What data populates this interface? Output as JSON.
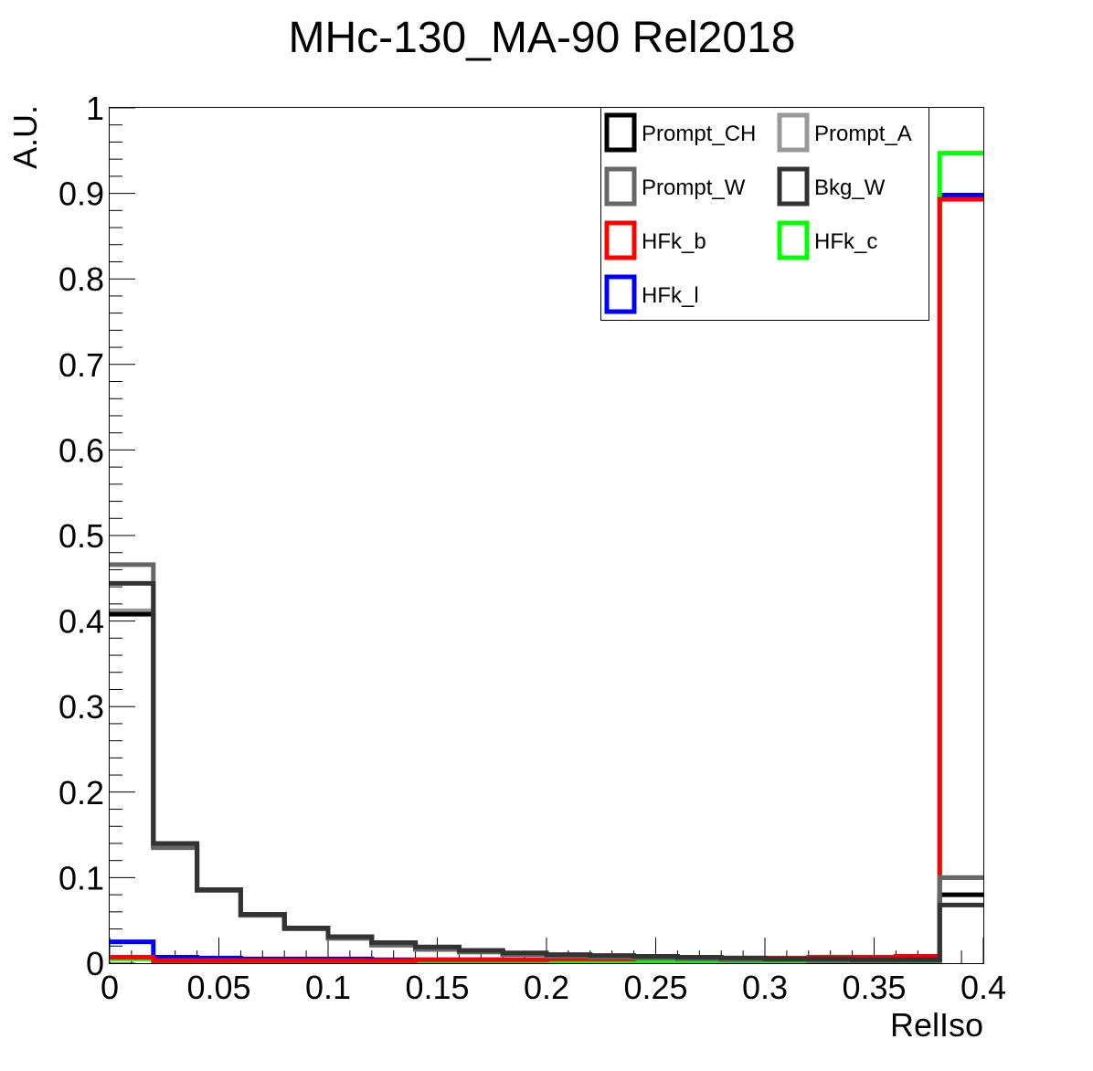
{
  "chart_data": {
    "type": "line",
    "title": "MHc-130_MA-90  Rel2018",
    "xlabel": "RelIso",
    "ylabel": "A.U.",
    "xlim": [
      0,
      0.4
    ],
    "ylim": [
      0,
      1
    ],
    "grid": false,
    "legend_position": "top-right",
    "x_ticks": [
      "0",
      "0.05",
      "0.1",
      "0.15",
      "0.2",
      "0.25",
      "0.3",
      "0.35",
      "0.4"
    ],
    "y_ticks": [
      "0",
      "0.1",
      "0.2",
      "0.3",
      "0.4",
      "0.5",
      "0.6",
      "0.7",
      "0.8",
      "0.9",
      "1"
    ],
    "bin_edges": [
      0,
      0.02,
      0.04,
      0.06,
      0.08,
      0.1,
      0.12,
      0.14,
      0.16,
      0.18,
      0.2,
      0.22,
      0.24,
      0.26,
      0.28,
      0.3,
      0.32,
      0.34,
      0.36,
      0.38,
      0.4
    ],
    "series": [
      {
        "name": "Prompt_CH",
        "color": "#000000",
        "values": [
          0.408,
          0.137,
          0.086,
          0.057,
          0.041,
          0.031,
          0.023,
          0.018,
          0.014,
          0.011,
          0.009,
          0.008,
          0.007,
          0.006,
          0.005,
          0.005,
          0.004,
          0.004,
          0.004,
          0.08
        ]
      },
      {
        "name": "Prompt_A",
        "color": "#999999",
        "values": [
          0.412,
          0.135,
          0.085,
          0.056,
          0.041,
          0.03,
          0.022,
          0.017,
          0.014,
          0.011,
          0.009,
          0.008,
          0.007,
          0.006,
          0.005,
          0.005,
          0.004,
          0.004,
          0.004,
          0.1
        ]
      },
      {
        "name": "Prompt_W",
        "color": "#666666",
        "values": [
          0.466,
          0.135,
          0.085,
          0.056,
          0.04,
          0.029,
          0.021,
          0.016,
          0.013,
          0.01,
          0.008,
          0.007,
          0.006,
          0.005,
          0.004,
          0.004,
          0.003,
          0.003,
          0.003,
          0.1
        ]
      },
      {
        "name": "Bkg_W",
        "color": "#333333",
        "values": [
          0.444,
          0.14,
          0.086,
          0.057,
          0.041,
          0.031,
          0.024,
          0.019,
          0.015,
          0.012,
          0.01,
          0.009,
          0.008,
          0.007,
          0.006,
          0.005,
          0.005,
          0.004,
          0.004,
          0.068
        ]
      },
      {
        "name": "HFk_b",
        "color": "#ff0000",
        "values": [
          0.007,
          0.003,
          0.003,
          0.003,
          0.003,
          0.003,
          0.003,
          0.004,
          0.004,
          0.004,
          0.005,
          0.005,
          0.006,
          0.006,
          0.006,
          0.006,
          0.007,
          0.007,
          0.008,
          0.893
        ]
      },
      {
        "name": "HFk_c",
        "color": "#00ff00",
        "values": [
          0.005,
          0.002,
          0.002,
          0.002,
          0.002,
          0.002,
          0.002,
          0.002,
          0.002,
          0.002,
          0.002,
          0.002,
          0.002,
          0.002,
          0.002,
          0.002,
          0.002,
          0.002,
          0.002,
          0.947
        ]
      },
      {
        "name": "HFk_l",
        "color": "#0000ff",
        "values": [
          0.025,
          0.007,
          0.006,
          0.005,
          0.005,
          0.005,
          0.004,
          0.004,
          0.004,
          0.004,
          0.004,
          0.004,
          0.004,
          0.004,
          0.003,
          0.003,
          0.003,
          0.003,
          0.003,
          0.898
        ]
      }
    ]
  }
}
